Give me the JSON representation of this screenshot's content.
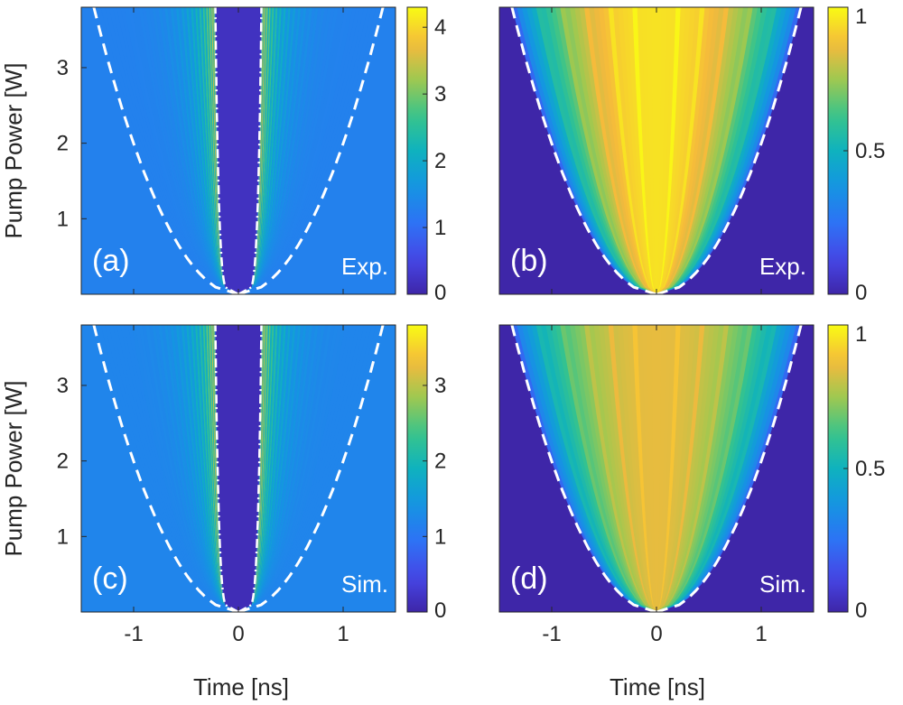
{
  "figure": {
    "shared_xlabel": "Time [ns]",
    "shared_ylabel": "Pump Power [W]"
  },
  "chart_data": [
    {
      "id": "a",
      "type": "heatmap",
      "label": "(a)",
      "source": "Exp.",
      "xlabel": "Time [ns]",
      "ylabel": "Pump Power [W]",
      "xlim": [
        -1.5,
        1.5
      ],
      "ylim": [
        0,
        3.8
      ],
      "xticks": [
        -1,
        0,
        1
      ],
      "yticks": [
        1,
        2,
        3
      ],
      "colorbar": {
        "range": [
          0,
          4.3
        ],
        "ticks": [
          0,
          1,
          2,
          3,
          4
        ]
      },
      "background_level": 1.3,
      "core_level": 0.2,
      "fringe_peak": 4.2,
      "inner_edge_coef": 0.14,
      "dashed_envelope_coef": 0.55,
      "description": "intensity map with bright parabolic fringes bounding a dark central core"
    },
    {
      "id": "b",
      "type": "heatmap",
      "label": "(b)",
      "source": "Exp.",
      "xlabel": "Time [ns]",
      "ylabel": "",
      "xlim": [
        -1.5,
        1.5
      ],
      "ylim": [
        0,
        3.8
      ],
      "xticks": [
        -1,
        0,
        1
      ],
      "yticks": [],
      "colorbar": {
        "range": [
          0,
          1
        ],
        "ticks": [
          0,
          0.5,
          1
        ]
      },
      "envelope_coef": 0.55,
      "peak_level": 0.95,
      "description": "normalized intensity filling a parabolic envelope"
    },
    {
      "id": "c",
      "type": "heatmap",
      "label": "(c)",
      "source": "Sim.",
      "xlabel": "Time [ns]",
      "ylabel": "Pump Power [W]",
      "xlim": [
        -1.5,
        1.5
      ],
      "ylim": [
        0,
        3.8
      ],
      "xticks": [
        -1,
        0,
        1
      ],
      "yticks": [
        1,
        2,
        3
      ],
      "colorbar": {
        "range": [
          0,
          3.8
        ],
        "ticks": [
          0,
          1,
          2,
          3
        ]
      },
      "background_level": 1.2,
      "core_level": 0.1,
      "fringe_peak": 3.7,
      "inner_edge_coef": 0.14,
      "dashed_envelope_coef": 0.55,
      "description": "simulated intensity map with parabolic fringes and dark core"
    },
    {
      "id": "d",
      "type": "heatmap",
      "label": "(d)",
      "source": "Sim.",
      "xlabel": "Time [ns]",
      "ylabel": "",
      "xlim": [
        -1.5,
        1.5
      ],
      "ylim": [
        0,
        3.8
      ],
      "xticks": [
        -1,
        0,
        1
      ],
      "yticks": [],
      "colorbar": {
        "range": [
          0,
          1
        ],
        "ticks": [
          0,
          0.5,
          1
        ]
      },
      "envelope_coef": 0.55,
      "peak_level": 0.85,
      "description": "simulated normalized intensity inside parabolic envelope"
    }
  ]
}
